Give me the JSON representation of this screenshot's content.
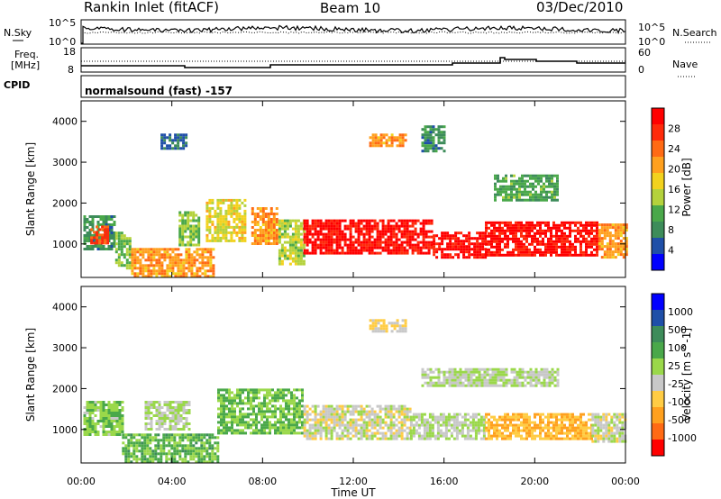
{
  "header": {
    "radar": "Rankin Inlet (fitACF)",
    "beam": "Beam 10",
    "date": "03/Dec/2010"
  },
  "status_panels": {
    "nsky_label": "N.Sky",
    "nsearch_label": "N.Search",
    "freq_label_1": "Freq.",
    "freq_label_2": "[MHz]",
    "nave_label": "Nave",
    "cpid_label": "CPID",
    "noise_left_ticks": [
      "10^5",
      "10^0"
    ],
    "noise_right_ticks": [
      "10^5",
      "10^0"
    ],
    "freq_left_ticks": [
      "18",
      "8"
    ],
    "freq_right_ticks": [
      "60",
      "0"
    ],
    "cpid_text": "normalsound (fast) -157"
  },
  "colors": {
    "power_scale": [
      "#0000ff",
      "#1f4fa8",
      "#3d8c5a",
      "#4aa84a",
      "#b4d23c",
      "#f2d21e",
      "#ffa01e",
      "#ff6a14",
      "#ff2a0a",
      "#ff0000"
    ],
    "velocity_scale": [
      "#0000ff",
      "#1f4fa8",
      "#3d8c5a",
      "#4aa84a",
      "#9ad84a",
      "#c8c8c8",
      "#ffcc44",
      "#ffa01e",
      "#ff6a14",
      "#ff0000"
    ]
  },
  "chart_data": [
    {
      "type": "heatmap",
      "title": "Power",
      "xlabel": "Time UT",
      "ylabel": "Slant Range [km]",
      "x_ticks": [
        "00:00",
        "04:00",
        "08:00",
        "12:00",
        "16:00",
        "20:00",
        "00:00"
      ],
      "xlim_hours": [
        0,
        24
      ],
      "ylim": [
        180,
        4500
      ],
      "y_ticks": [
        "1000",
        "2000",
        "3000",
        "4000"
      ],
      "colorbar_label": "Power [dB]",
      "colorbar_ticks": [
        "28",
        "24",
        "20",
        "16",
        "12",
        "8",
        "4"
      ],
      "colorbar_range": [
        0,
        30
      ],
      "regions": [
        {
          "t0": 0.1,
          "t1": 1.5,
          "r0": 900,
          "r1": 1700,
          "value": 8
        },
        {
          "t0": 0.4,
          "t1": 1.2,
          "r0": 1050,
          "r1": 1450,
          "value": 24
        },
        {
          "t0": 1.5,
          "t1": 2.1,
          "r0": 400,
          "r1": 1300,
          "value": 12
        },
        {
          "t0": 2.2,
          "t1": 5.8,
          "r0": 200,
          "r1": 900,
          "value": 20
        },
        {
          "t0": 4.3,
          "t1": 5.2,
          "r0": 1000,
          "r1": 1800,
          "value": 12
        },
        {
          "t0": 5.5,
          "t1": 7.2,
          "r0": 1100,
          "r1": 2100,
          "value": 16
        },
        {
          "t0": 7.5,
          "t1": 8.6,
          "r0": 1000,
          "r1": 1900,
          "value": 20
        },
        {
          "t0": 8.7,
          "t1": 9.8,
          "r0": 500,
          "r1": 1600,
          "value": 14
        },
        {
          "t0": 9.8,
          "t1": 15.5,
          "r0": 800,
          "r1": 1600,
          "value": 28
        },
        {
          "t0": 15.5,
          "t1": 17.8,
          "r0": 700,
          "r1": 1300,
          "value": 28
        },
        {
          "t0": 17.8,
          "t1": 22.8,
          "r0": 750,
          "r1": 1550,
          "value": 28
        },
        {
          "t0": 22.8,
          "t1": 24,
          "r0": 700,
          "r1": 1500,
          "value": 20
        },
        {
          "t0": 3.5,
          "t1": 4.6,
          "r0": 3350,
          "r1": 3700,
          "value": 6
        },
        {
          "t0": 12.7,
          "t1": 14.3,
          "r0": 3400,
          "r1": 3700,
          "value": 20
        },
        {
          "t0": 18.2,
          "t1": 21.0,
          "r0": 2100,
          "r1": 2700,
          "value": 10
        },
        {
          "t0": 15.0,
          "t1": 16.0,
          "r0": 3300,
          "r1": 3900,
          "value": 8
        }
      ]
    },
    {
      "type": "heatmap",
      "title": "Velocity",
      "xlabel": "Time UT",
      "ylabel": "Slant Range [km]",
      "x_ticks": [
        "00:00",
        "04:00",
        "08:00",
        "12:00",
        "16:00",
        "20:00",
        "00:00"
      ],
      "xlim_hours": [
        0,
        24
      ],
      "ylim": [
        180,
        4500
      ],
      "y_ticks": [
        "1000",
        "2000",
        "3000",
        "4000"
      ],
      "colorbar_label": "Velocity [m s^-1]",
      "colorbar_ticks": [
        "1000",
        "500",
        "100",
        "25",
        "-25",
        "-100",
        "-500",
        "-1000"
      ],
      "colorbar_range": [
        -1000,
        1000
      ],
      "regions": [
        {
          "t0": 0.1,
          "t1": 1.8,
          "r0": 900,
          "r1": 1700,
          "value": 150
        },
        {
          "t0": 1.8,
          "t1": 6.0,
          "r0": 200,
          "r1": 900,
          "value": 250
        },
        {
          "t0": 2.8,
          "t1": 4.8,
          "r0": 1000,
          "r1": 1700,
          "value": 0
        },
        {
          "t0": 6.0,
          "t1": 9.8,
          "r0": 900,
          "r1": 2000,
          "value": 200
        },
        {
          "t0": 9.8,
          "t1": 14.5,
          "r0": 800,
          "r1": 1600,
          "value": -100
        },
        {
          "t0": 14.5,
          "t1": 17.8,
          "r0": 800,
          "r1": 1400,
          "value": 0
        },
        {
          "t0": 17.8,
          "t1": 22.5,
          "r0": 750,
          "r1": 1400,
          "value": -400
        },
        {
          "t0": 22.5,
          "t1": 24,
          "r0": 700,
          "r1": 1400,
          "value": -100
        },
        {
          "t0": 12.7,
          "t1": 14.3,
          "r0": 3400,
          "r1": 3700,
          "value": -200
        },
        {
          "t0": 15.0,
          "t1": 21.0,
          "r0": 2100,
          "r1": 2500,
          "value": 0
        }
      ]
    }
  ]
}
